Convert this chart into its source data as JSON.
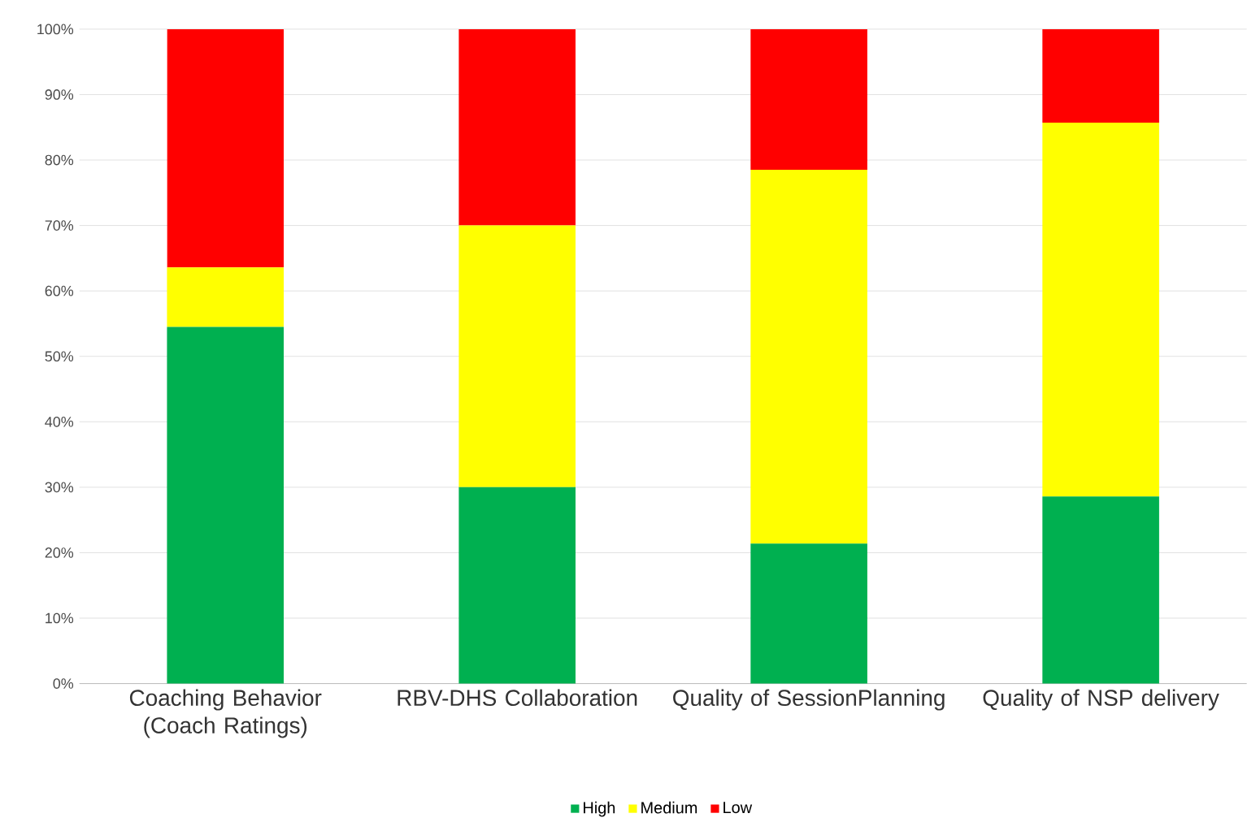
{
  "chart_data": {
    "type": "bar",
    "stacked": true,
    "categories": [
      "Coaching Behavior (Coach Ratings)",
      "RBV-DHS Collaboration",
      "Quality of SessionPlanning",
      "Quality of NSP delivery"
    ],
    "series": [
      {
        "name": "High",
        "color": "#00b050",
        "values": [
          54.5,
          30,
          21.4,
          28.6
        ]
      },
      {
        "name": "Medium",
        "color": "#ffff00",
        "values": [
          9.1,
          40,
          57.1,
          57.1
        ]
      },
      {
        "name": "Low",
        "color": "#ff0000",
        "values": [
          36.4,
          30,
          21.5,
          14.3
        ]
      }
    ],
    "ylim": [
      0,
      100
    ],
    "yticks": [
      {
        "value": 0,
        "label": "0%"
      },
      {
        "value": 10,
        "label": "10%"
      },
      {
        "value": 20,
        "label": "20%"
      },
      {
        "value": 30,
        "label": "30%"
      },
      {
        "value": 40,
        "label": "40%"
      },
      {
        "value": 50,
        "label": "50%"
      },
      {
        "value": 60,
        "label": "60%"
      },
      {
        "value": 70,
        "label": "70%"
      },
      {
        "value": 80,
        "label": "80%"
      },
      {
        "value": 90,
        "label": "90%"
      },
      {
        "value": 100,
        "label": "100%"
      }
    ],
    "grid": "y",
    "legend": "bottom"
  }
}
